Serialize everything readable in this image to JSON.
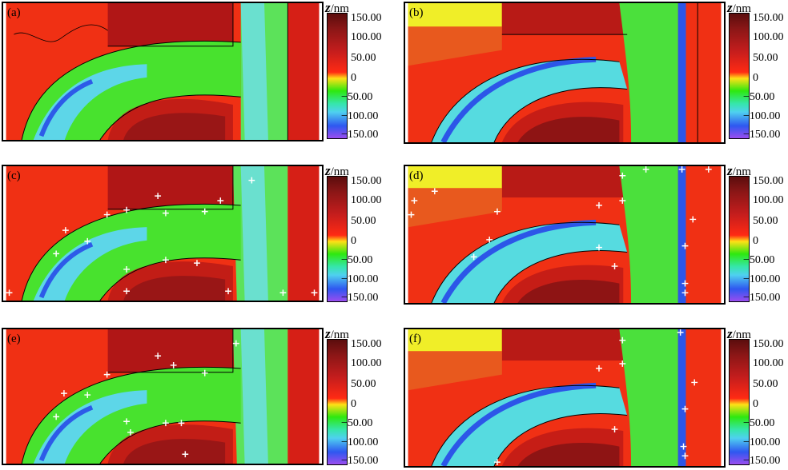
{
  "colorbar": {
    "symbol": "z",
    "unit": "/nm",
    "ticks": [
      "150.00",
      "100.00",
      "50.00",
      "0",
      "−50.00",
      "−100.00",
      "−150.00"
    ],
    "range": [
      -150,
      150
    ],
    "colors": [
      "#5b0d0d",
      "#8a1616",
      "#c41d1d",
      "#ff2a14",
      "#ffe017",
      "#2ee80f",
      "#35e6a8",
      "#4fd0f0",
      "#2e58f0",
      "#9a4df0"
    ]
  },
  "panels": [
    {
      "label": "(a)"
    },
    {
      "label": "(b)"
    },
    {
      "label": "(c)"
    },
    {
      "label": "(d)"
    },
    {
      "label": "(e)"
    },
    {
      "label": "(f)"
    }
  ]
}
